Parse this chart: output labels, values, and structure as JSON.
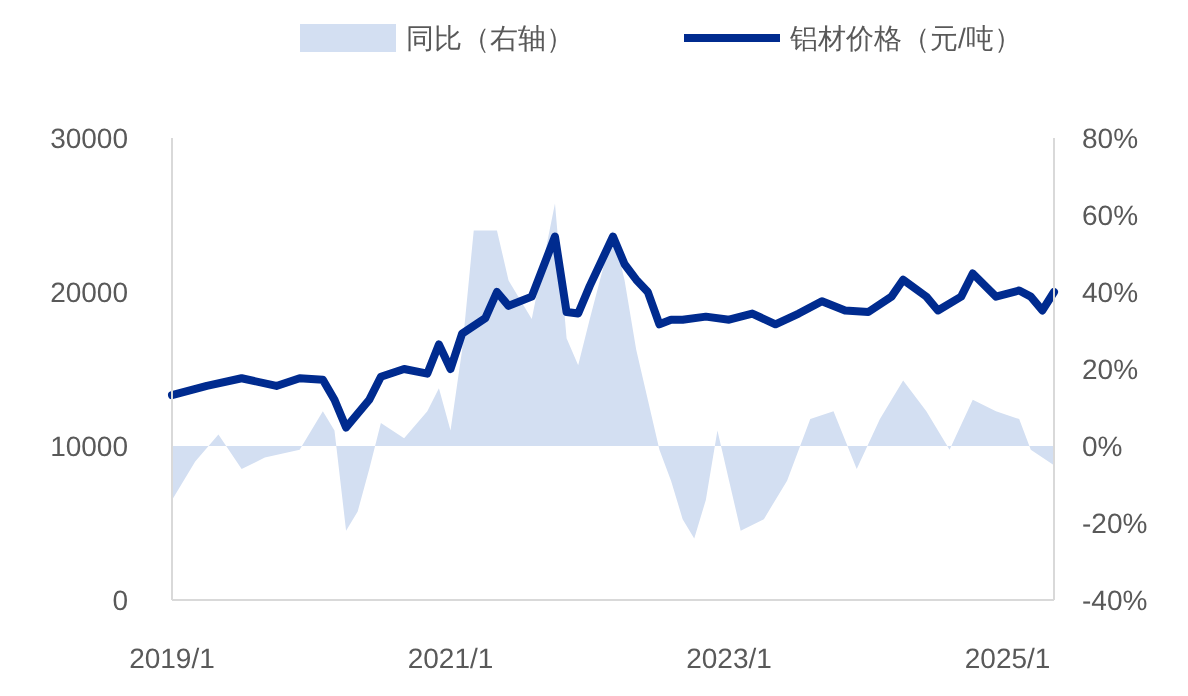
{
  "chart_data": {
    "type": "line",
    "legend": "top",
    "grid": false,
    "xlim": [
      "2019-01",
      "2025-05"
    ],
    "xticks": [
      {
        "value": "2019-01",
        "label": "2019/1"
      },
      {
        "value": "2021-01",
        "label": "2021/1"
      },
      {
        "value": "2023-01",
        "label": "2023/1"
      },
      {
        "value": "2025-01",
        "label": "2025/1"
      }
    ],
    "ylim": [
      0,
      30000
    ],
    "yticks": [
      0,
      10000,
      20000,
      30000
    ],
    "y2lim": [
      -40,
      80
    ],
    "y2ticks": [
      {
        "value": -40,
        "label": "-40%"
      },
      {
        "value": -20,
        "label": "-20%"
      },
      {
        "value": 0,
        "label": "0%"
      },
      {
        "value": 20,
        "label": "20%"
      },
      {
        "value": 40,
        "label": "40%"
      },
      {
        "value": 60,
        "label": "60%"
      },
      {
        "value": 80,
        "label": "80%"
      }
    ],
    "series": [
      {
        "name": "同比（右轴）",
        "type": "area",
        "axis": "y2",
        "color": "#d3dff2",
        "x": [
          "2019-01",
          "2019-03",
          "2019-05",
          "2019-07",
          "2019-09",
          "2019-12",
          "2020-02",
          "2020-03",
          "2020-04",
          "2020-05",
          "2020-06",
          "2020-07",
          "2020-09",
          "2020-11",
          "2020-12",
          "2021-01",
          "2021-02",
          "2021-03",
          "2021-05",
          "2021-06",
          "2021-08",
          "2021-10",
          "2021-11",
          "2021-12",
          "2022-01",
          "2022-03",
          "2022-04",
          "2022-05",
          "2022-06",
          "2022-07",
          "2022-08",
          "2022-09",
          "2022-10",
          "2022-11",
          "2022-12",
          "2023-01",
          "2023-02",
          "2023-04",
          "2023-06",
          "2023-08",
          "2023-10",
          "2023-12",
          "2024-02",
          "2024-04",
          "2024-06",
          "2024-08",
          "2024-10",
          "2024-12",
          "2025-02",
          "2025-03",
          "2025-05"
        ],
        "values": [
          -14,
          -4,
          3,
          -6,
          -3,
          -1,
          9,
          4,
          -22,
          -17,
          -6,
          6,
          2,
          9,
          15,
          4,
          25,
          56,
          56,
          43,
          33,
          63,
          28,
          21,
          33,
          56,
          43,
          25,
          12,
          -1,
          -9,
          -19,
          -24,
          -14,
          4,
          -9,
          -22,
          -19,
          -9,
          7,
          9,
          -6,
          7,
          17,
          9,
          -1,
          12,
          9,
          7,
          -1,
          -5
        ]
      },
      {
        "name": "铝材价格（元/吨）",
        "color": "#002b8f",
        "x": [
          "2019-01",
          "2019-04",
          "2019-07",
          "2019-10",
          "2019-12",
          "2020-02",
          "2020-03",
          "2020-04",
          "2020-06",
          "2020-07",
          "2020-09",
          "2020-11",
          "2020-12",
          "2021-01",
          "2021-02",
          "2021-04",
          "2021-05",
          "2021-06",
          "2021-08",
          "2021-10",
          "2021-11",
          "2021-12",
          "2022-01",
          "2022-03",
          "2022-04",
          "2022-05",
          "2022-06",
          "2022-07",
          "2022-08",
          "2022-09",
          "2022-11",
          "2023-01",
          "2023-03",
          "2023-05",
          "2023-07",
          "2023-09",
          "2023-11",
          "2024-01",
          "2024-03",
          "2024-04",
          "2024-06",
          "2024-07",
          "2024-09",
          "2024-10",
          "2024-12",
          "2025-02",
          "2025-03",
          "2025-04",
          "2025-05"
        ],
        "values": [
          13300,
          13900,
          14400,
          13900,
          14400,
          14300,
          13000,
          11200,
          13000,
          14500,
          15000,
          14700,
          16600,
          15000,
          17300,
          18300,
          20000,
          19100,
          19700,
          23600,
          18700,
          18600,
          20400,
          23600,
          21800,
          20800,
          20000,
          17900,
          18200,
          18200,
          18400,
          18200,
          18600,
          17900,
          18600,
          19400,
          18800,
          18700,
          19700,
          20800,
          19700,
          18800,
          19700,
          21200,
          19700,
          20100,
          19700,
          18800,
          20000
        ]
      }
    ]
  }
}
